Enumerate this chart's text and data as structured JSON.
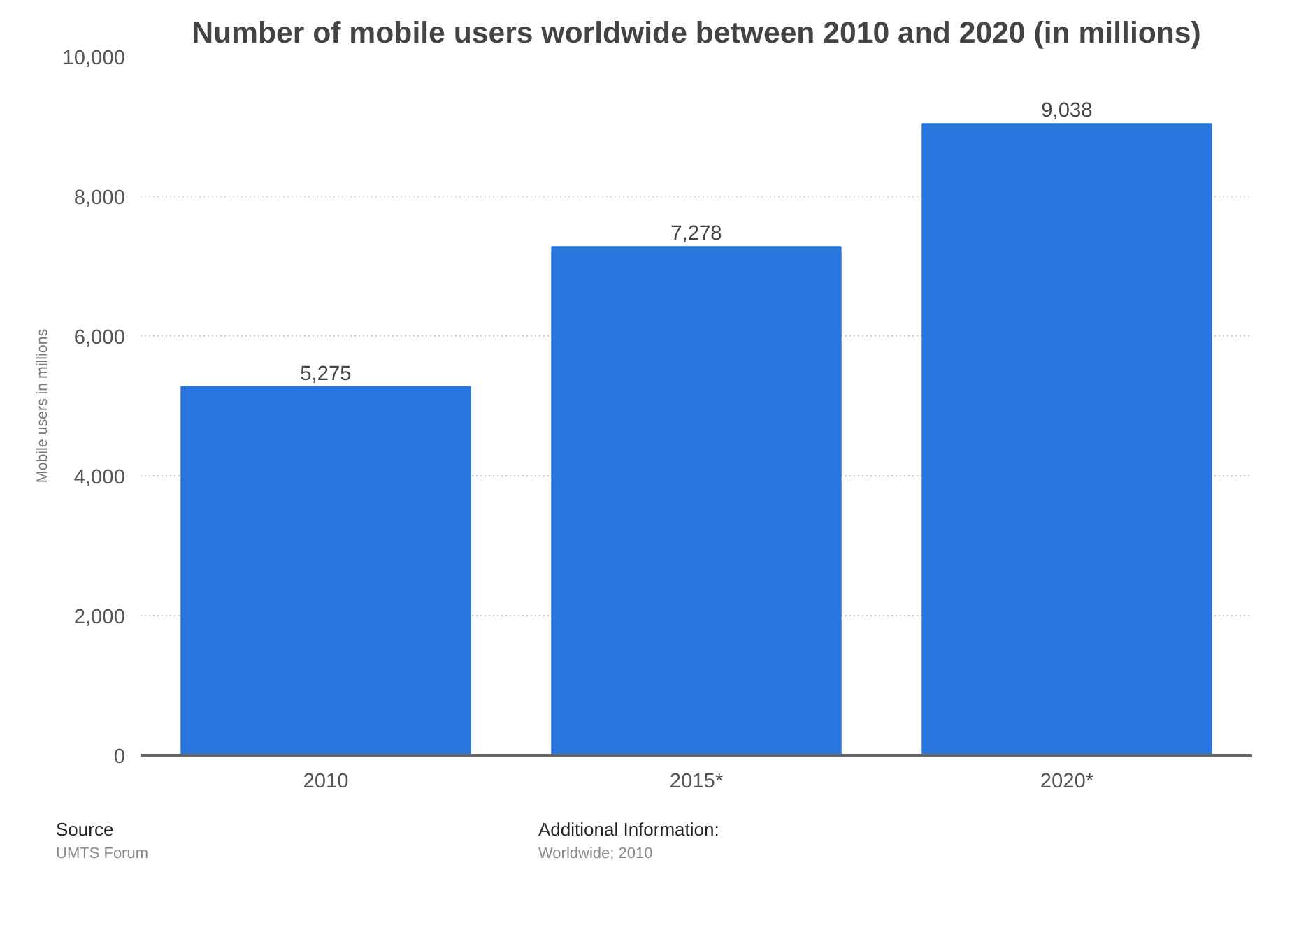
{
  "chart_data": {
    "type": "bar",
    "title": "Number of mobile users worldwide between 2010 and 2020 (in millions)",
    "ylabel": "Mobile users in millions",
    "categories": [
      "2010",
      "2015*",
      "2020*"
    ],
    "values": [
      5275,
      7278,
      9038
    ],
    "color": "#2876dd",
    "ylim": [
      0,
      10000
    ],
    "yticks": [
      {
        "value": 0,
        "label": "0"
      },
      {
        "value": 2000,
        "label": "2,000"
      },
      {
        "value": 4000,
        "label": "4,000"
      },
      {
        "value": 6000,
        "label": "6,000"
      },
      {
        "value": 8000,
        "label": "8,000"
      },
      {
        "value": 10000,
        "label": "10,000"
      }
    ],
    "grid": "y",
    "value_labels": [
      "5,275",
      "7,278",
      "9,038"
    ],
    "annotations": [
      "Source",
      "UMTS Forum",
      "Additional Information:",
      "Worldwide; 2010"
    ]
  }
}
